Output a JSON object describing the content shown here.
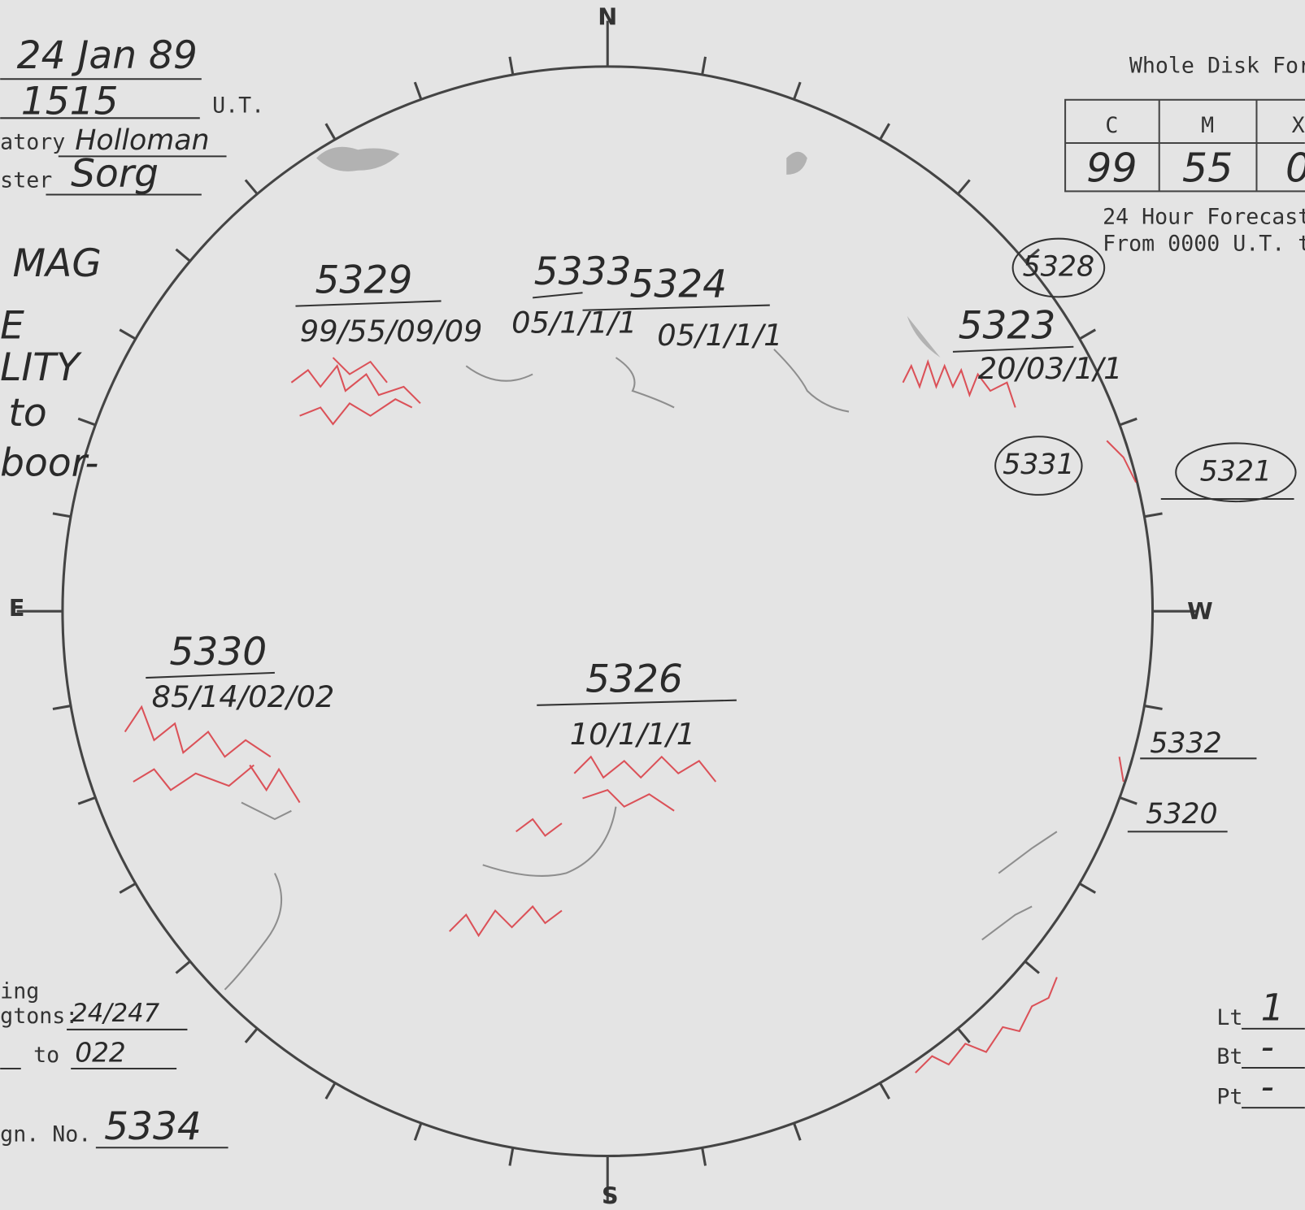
{
  "header": {
    "date": "24 Jan 89",
    "time": "1515",
    "time_unit": "U.T.",
    "observatory_label": "atory",
    "observatory": "Holloman",
    "observer_label": "ster",
    "observer": "Sorg"
  },
  "left_notes": [
    "MAG",
    "E",
    "LITY",
    "to",
    "boor-"
  ],
  "compass": {
    "n": "N",
    "s": "S",
    "e": "E",
    "w": "W"
  },
  "forecast": {
    "title": "Whole Disk For",
    "headers": [
      "C",
      "M",
      "X"
    ],
    "values": [
      "99",
      "55",
      "0"
    ],
    "note1": "24 Hour Forecast",
    "note2": "From 0000 U.T. t"
  },
  "regions": [
    {
      "number": "5329",
      "label": "99/55/09/09"
    },
    {
      "number": "5333",
      "label": "05/1/1/1"
    },
    {
      "number": "5324",
      "label": "05/1/1/1"
    },
    {
      "number": "5323",
      "label": "20/03/1/1"
    },
    {
      "number": "5330",
      "label": "85/14/02/02"
    },
    {
      "number": "5326",
      "label": "10/1/1/1"
    }
  ],
  "circled": [
    "5328",
    "5331",
    "5321"
  ],
  "limb": [
    "5332",
    "5320"
  ],
  "rotation": {
    "label1": "ing",
    "label2": "gtons:",
    "value": "24/247",
    "to_label": "to",
    "to_value": "022"
  },
  "region_no": {
    "label": "gn. No.",
    "value": "5334"
  },
  "coords": [
    {
      "label": "Lt",
      "value": "1"
    },
    {
      "label": "Bt",
      "value": "-"
    },
    {
      "label": "Pt",
      "value": "-"
    }
  ]
}
